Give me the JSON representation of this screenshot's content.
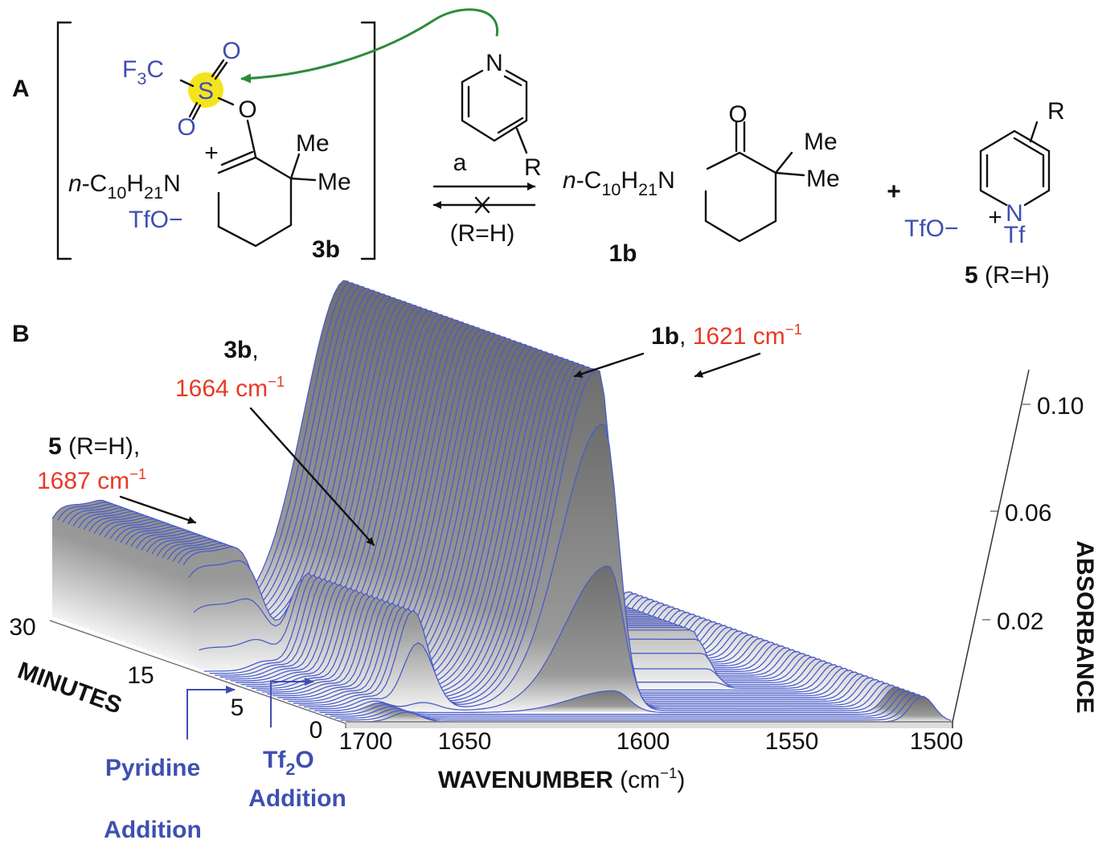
{
  "scheme": {
    "panel": "A",
    "intermediate": {
      "cf3": [
        "F",
        "3",
        "C"
      ],
      "s": "S",
      "o_top": "O",
      "o_bottom": "O",
      "o_ester": "O",
      "charge": "+",
      "chain": [
        "n",
        "-C",
        "10",
        "H",
        "21",
        "N"
      ],
      "me1": "Me",
      "me2": "Me",
      "counterion": "TfO−",
      "label": "3b"
    },
    "pyridine": {
      "n": "N",
      "r": "R"
    },
    "arrow": {
      "forward": "a",
      "reverse": "(R=H)"
    },
    "product": {
      "o": "O",
      "chain": [
        "n",
        "-C",
        "10",
        "H",
        "21",
        "N"
      ],
      "me1": "Me",
      "me2": "Me",
      "label": "1b"
    },
    "plus": "+",
    "salt": {
      "r": "R",
      "n": "N",
      "charge": "+",
      "tf": "Tf",
      "counterion": "TfO−",
      "label": [
        "5",
        " (R=H)"
      ]
    }
  },
  "plot": {
    "panel": "B",
    "annotations": [
      {
        "parts": [
          "1b",
          ", ",
          "1621 cm",
          "−1"
        ]
      },
      {
        "parts": [
          "3b",
          ","
        ],
        "band": [
          "1664 cm",
          "−1"
        ]
      },
      {
        "parts": [
          "5",
          " (R=H),"
        ],
        "band": [
          "1687 cm",
          "−1"
        ]
      }
    ],
    "absorbance_ticks": [
      "0.10",
      "0.06",
      "0.02"
    ],
    "absorbance_label": "ABSORBANCE",
    "wavenumber_ticks": [
      "1700",
      "1650",
      "1600",
      "1550",
      "1500"
    ],
    "wavenumber_label": [
      "WAVENUMBER",
      " (cm",
      "−1",
      ")"
    ],
    "minute_ticks": [
      "30",
      "15",
      "5",
      "0"
    ],
    "minutes_label": "MINUTES",
    "events": [
      {
        "lines": [
          "Pyridine",
          "Addition"
        ]
      },
      {
        "parts": [
          "Tf",
          "2",
          "O"
        ],
        "line2": "Addition"
      }
    ]
  }
}
